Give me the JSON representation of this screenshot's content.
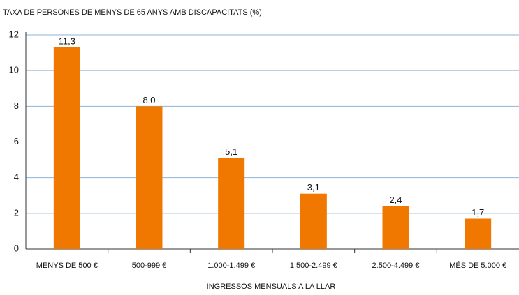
{
  "chart_data": {
    "type": "bar",
    "title": "TAXA DE PERSONES DE MENYS DE 65 ANYS AMB DISCAPACITATS (%)",
    "x_label": "INGRESSOS MENSUALS A LA LLAR",
    "categories": [
      "MENYS DE 500 €",
      "500-999 €",
      "1.000-1.499 €",
      "1.500-2.499 €",
      "2.500-4.499 €",
      "MÉS DE 5.000 €"
    ],
    "values": [
      11.3,
      8.0,
      5.1,
      3.1,
      2.4,
      1.7
    ],
    "value_labels": [
      "11,3",
      "8,0",
      "5,1",
      "3,1",
      "2,4",
      "1,7"
    ],
    "color": "#f07800",
    "ylim": [
      0,
      12
    ],
    "yticks": [
      0,
      2,
      4,
      6,
      8,
      10,
      12
    ],
    "grid": true
  }
}
